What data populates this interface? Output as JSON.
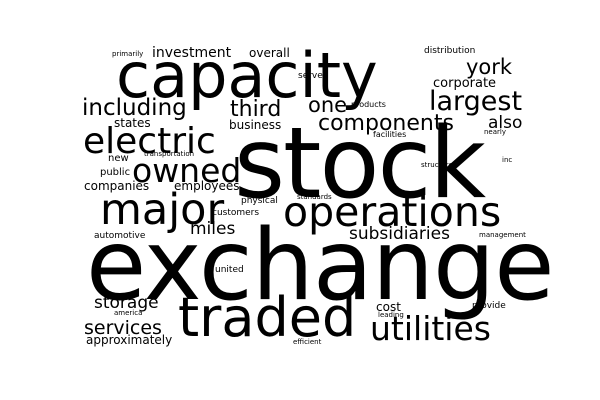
{
  "colors": {
    "background": "#ffffff",
    "text": "#000000"
  },
  "words": [
    {
      "text": "exchange",
      "weight": 100
    },
    {
      "text": "stock",
      "weight": 95
    },
    {
      "text": "capacity",
      "weight": 70
    },
    {
      "text": "traded",
      "weight": 62
    },
    {
      "text": "operations",
      "weight": 48
    },
    {
      "text": "major",
      "weight": 48
    },
    {
      "text": "electric",
      "weight": 40
    },
    {
      "text": "owned",
      "weight": 38
    },
    {
      "text": "utilities",
      "weight": 36
    },
    {
      "text": "largest",
      "weight": 30
    },
    {
      "text": "components",
      "weight": 28
    },
    {
      "text": "including",
      "weight": 26
    },
    {
      "text": "third",
      "weight": 26
    },
    {
      "text": "one",
      "weight": 26
    },
    {
      "text": "york",
      "weight": 26
    },
    {
      "text": "services",
      "weight": 22
    },
    {
      "text": "subsidiaries",
      "weight": 20
    },
    {
      "text": "storage",
      "weight": 20
    },
    {
      "text": "miles",
      "weight": 20
    },
    {
      "text": "also",
      "weight": 20
    },
    {
      "text": "investment",
      "weight": 16
    },
    {
      "text": "corporate",
      "weight": 16
    },
    {
      "text": "business",
      "weight": 14
    },
    {
      "text": "companies",
      "weight": 14
    },
    {
      "text": "employees",
      "weight": 14
    },
    {
      "text": "approximately",
      "weight": 14
    },
    {
      "text": "states",
      "weight": 14
    },
    {
      "text": "overall",
      "weight": 14
    },
    {
      "text": "cost",
      "weight": 14
    },
    {
      "text": "new",
      "weight": 12
    },
    {
      "text": "public",
      "weight": 12
    },
    {
      "text": "automotive",
      "weight": 10
    },
    {
      "text": "physical",
      "weight": 10
    },
    {
      "text": "customers",
      "weight": 10
    },
    {
      "text": "united",
      "weight": 10
    },
    {
      "text": "provide",
      "weight": 10
    },
    {
      "text": "distribution",
      "weight": 10
    },
    {
      "text": "serve",
      "weight": 10
    },
    {
      "text": "products",
      "weight": 9
    },
    {
      "text": "facilities",
      "weight": 9
    },
    {
      "text": "primarily",
      "weight": 8
    },
    {
      "text": "transportation",
      "weight": 8
    },
    {
      "text": "structure",
      "weight": 8
    },
    {
      "text": "standards",
      "weight": 8
    },
    {
      "text": "management",
      "weight": 8
    },
    {
      "text": "nearly",
      "weight": 7
    },
    {
      "text": "inc",
      "weight": 7
    },
    {
      "text": "leading",
      "weight": 7
    },
    {
      "text": "america",
      "weight": 7
    },
    {
      "text": "efficient",
      "weight": 7
    }
  ]
}
